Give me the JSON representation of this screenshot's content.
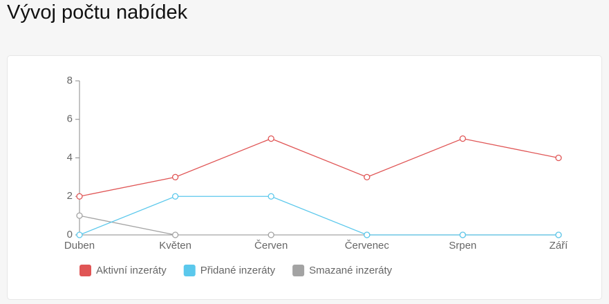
{
  "title": "Vývoj počtu nabídek",
  "chart_data": {
    "type": "line",
    "categories": [
      "Duben",
      "Květen",
      "Červen",
      "Červenec",
      "Srpen",
      "Září"
    ],
    "series": [
      {
        "name": "Aktivní inzeráty",
        "color": "#e05555",
        "values": [
          2,
          3,
          5,
          3,
          5,
          4
        ]
      },
      {
        "name": "Přidané inzeráty",
        "color": "#5bc8ec",
        "values": [
          0,
          2,
          2,
          0,
          0,
          0
        ]
      },
      {
        "name": "Smazané inzeráty",
        "color": "#a3a3a3",
        "values": [
          1,
          0,
          0,
          0,
          0,
          0
        ]
      }
    ],
    "ylim": [
      0,
      8
    ],
    "yticks": [
      0,
      2,
      4,
      6,
      8
    ]
  }
}
